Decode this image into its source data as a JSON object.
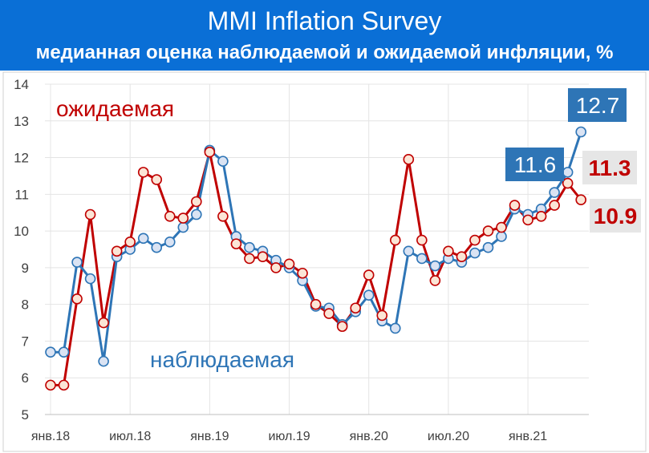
{
  "chart_data": {
    "type": "line",
    "title": "MMI Inflation Survey",
    "subtitle": "медианная оценка наблюдаемой и ожидаемой инфляции, %",
    "xlabel": "",
    "ylabel": "",
    "ylim": [
      5,
      14
    ],
    "yticks": [
      "5",
      "6",
      "7",
      "8",
      "9",
      "10",
      "11",
      "12",
      "13",
      "14"
    ],
    "grid": true,
    "x": [
      "янв.18",
      "фев.18",
      "мар.18",
      "апр.18",
      "май.18",
      "июн.18",
      "июл.18",
      "авг.18",
      "сен.18",
      "окт.18",
      "ноя.18",
      "дек.18",
      "янв.19",
      "фев.19",
      "мар.19",
      "апр.19",
      "май.19",
      "июн.19",
      "июл.19",
      "авг.19",
      "сен.19",
      "окт.19",
      "ноя.19",
      "дек.19",
      "янв.20",
      "фев.20",
      "мар.20",
      "апр.20",
      "май.20",
      "июн.20",
      "июл.20",
      "авг.20",
      "сен.20",
      "окт.20",
      "ноя.20",
      "дек.20",
      "янв.21",
      "фев.21",
      "мар.21",
      "апр.21",
      "май.21"
    ],
    "xtick_labels": [
      {
        "index": 0,
        "label": "янв.18"
      },
      {
        "index": 6,
        "label": "июл.18"
      },
      {
        "index": 12,
        "label": "янв.19"
      },
      {
        "index": 18,
        "label": "июл.19"
      },
      {
        "index": 24,
        "label": "янв.20"
      },
      {
        "index": 30,
        "label": "июл.20"
      },
      {
        "index": 36,
        "label": "янв.21"
      }
    ],
    "series": [
      {
        "name": "ожидаемая",
        "color": "#c00000",
        "values": [
          5.8,
          5.8,
          8.15,
          10.45,
          7.5,
          9.45,
          9.7,
          11.6,
          11.4,
          10.4,
          10.35,
          10.8,
          12.15,
          10.4,
          9.65,
          9.25,
          9.3,
          9.0,
          9.1,
          8.85,
          8.0,
          7.75,
          7.4,
          7.9,
          8.8,
          7.7,
          9.75,
          11.95,
          9.75,
          8.65,
          9.45,
          9.3,
          9.75,
          10.0,
          10.1,
          10.7,
          10.3,
          10.4,
          10.7,
          11.3,
          10.85
        ]
      },
      {
        "name": "наблюдаемая",
        "color": "#2e75b6",
        "values": [
          6.7,
          6.7,
          9.15,
          8.7,
          6.45,
          9.3,
          9.5,
          9.8,
          9.55,
          9.7,
          10.1,
          10.45,
          12.2,
          11.9,
          9.85,
          9.55,
          9.45,
          9.2,
          9.0,
          8.65,
          7.95,
          7.9,
          7.45,
          7.8,
          8.25,
          7.55,
          7.35,
          9.45,
          9.25,
          9.05,
          9.25,
          9.15,
          9.4,
          9.55,
          9.85,
          10.6,
          10.45,
          10.6,
          11.05,
          11.6,
          12.7
        ]
      }
    ],
    "annotations": [
      {
        "text": "ожидаемая",
        "color": "#c00000",
        "style": "label"
      },
      {
        "text": "наблюдаемая",
        "color": "#2e75b6",
        "style": "label"
      },
      {
        "text": "12.7",
        "color": "#2e75b6",
        "style": "box"
      },
      {
        "text": "11.6",
        "color": "#2e75b6",
        "style": "box"
      },
      {
        "text": "11.3",
        "color": "#c00000",
        "style": "box"
      },
      {
        "text": "10.9",
        "color": "#c00000",
        "style": "box"
      }
    ]
  }
}
